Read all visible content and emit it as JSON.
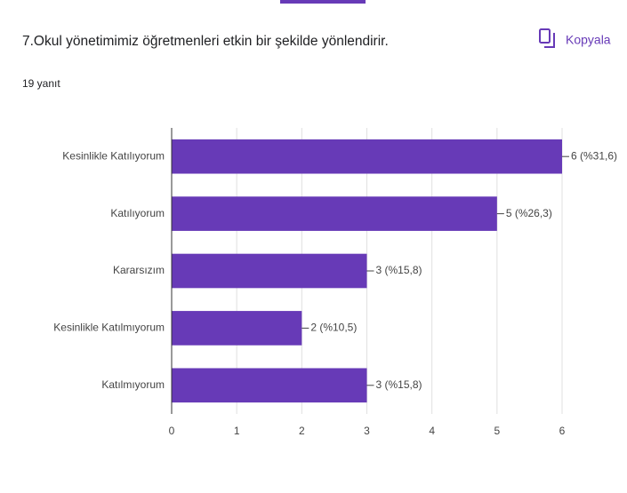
{
  "header": {
    "button": "Kopyala"
  },
  "chart_data": {
    "type": "bar",
    "orientation": "horizontal",
    "title": "7.Okul yönetimimiz öğretmenleri etkin bir şekilde yönlendirir.",
    "subtitle": "19 yanıt",
    "categories": [
      "Kesinlikle Katılıyorum",
      "Katılıyorum",
      "Kararsızım",
      "Kesinlikle Katılmıyorum",
      "Katılmıyorum"
    ],
    "values": [
      6,
      5,
      3,
      2,
      3
    ],
    "value_labels": [
      "6 (%31,6)",
      "5 (%26,3)",
      "3 (%15,8)",
      "2 (%10,5)",
      "3 (%15,8)"
    ],
    "color": "#673ab7",
    "xlim": [
      0,
      6
    ],
    "xticks": [
      0,
      1,
      2,
      3,
      4,
      5,
      6
    ],
    "grid": true
  }
}
